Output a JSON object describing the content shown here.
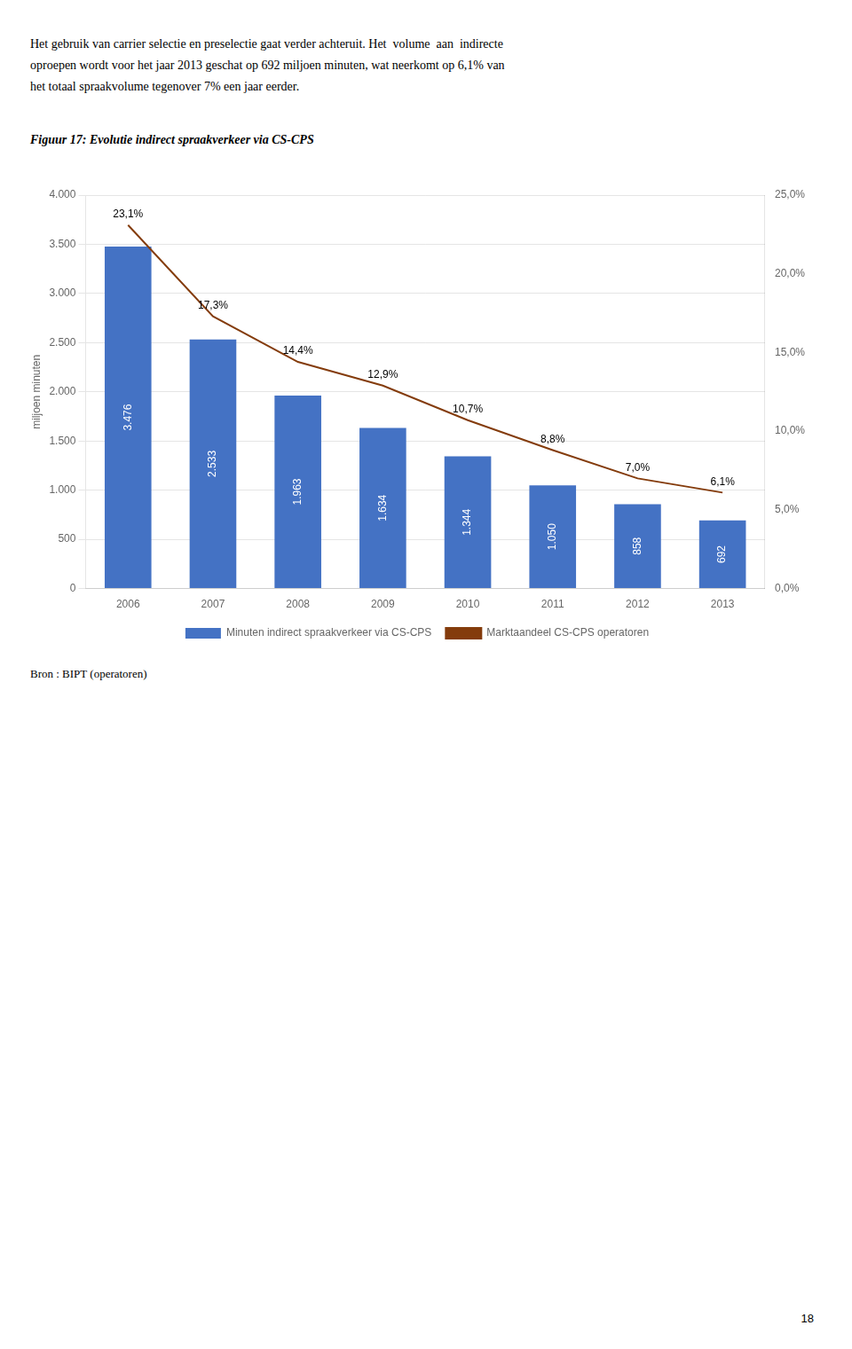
{
  "chart_data": {
    "type": "bar",
    "header_lines": [
      "Het gebruik van carrier selectie en preselectie gaat verder achteruit. Het  volume  aan  indirecte",
      "oproepen wordt voor het jaar 2013 geschat op 692 miljoen minuten, wat neerkomt op 6,1% van",
      "het totaal spraakvolume tegenover 7% een jaar eerder."
    ],
    "title": "Figuur 17: Evolutie indirect spraakverkeer via CS-CPS",
    "source": "Bron : BIPT (operatoren)",
    "page_number": "18",
    "ylabel": "miljoen minuten",
    "categories": [
      "2006",
      "2007",
      "2008",
      "2009",
      "2010",
      "2011",
      "2012",
      "2013"
    ],
    "series": [
      {
        "name": "Minuten indirect spraakverkeer via CS-CPS",
        "type": "bar",
        "color": "#4472C4",
        "values": [
          3476,
          2533,
          1963,
          1634,
          1344,
          1050,
          858,
          692
        ],
        "value_labels": [
          "3.476",
          "2.533",
          "1.963",
          "1.634",
          "1.344",
          "1.050",
          "858",
          "692"
        ]
      },
      {
        "name": "Marktaandeel CS-CPS operatoren",
        "type": "line",
        "color": "#843C0C",
        "axis": "y2",
        "values": [
          23.1,
          17.3,
          14.4,
          12.9,
          10.7,
          8.8,
          7.0,
          6.1
        ],
        "value_labels": [
          "23,1%",
          "17,3%",
          "14,4%",
          "12,9%",
          "10,7%",
          "8,8%",
          "7,0%",
          "6,1%"
        ]
      }
    ],
    "ylim": [
      0,
      4000
    ],
    "yticks": [
      0,
      500,
      {
        "value": 1000,
        "label": "1.000"
      },
      {
        "value": 1500,
        "label": "1.500"
      },
      {
        "value": 2000,
        "label": "2.000"
      },
      {
        "value": 2500,
        "label": "2.500"
      },
      {
        "value": 3000,
        "label": "3.000"
      },
      {
        "value": 3500,
        "label": "3.500"
      },
      {
        "value": 4000,
        "label": "4.000"
      }
    ],
    "y2lim": [
      0.0,
      25.0
    ],
    "y2ticks": [
      {
        "value": 0.0,
        "label": "0,0%"
      },
      {
        "value": 5.0,
        "label": "5,0%"
      },
      {
        "value": 10.0,
        "label": "10,0%"
      },
      {
        "value": 15.0,
        "label": "15,0%"
      },
      {
        "value": 20.0,
        "label": "20,0%"
      },
      {
        "value": 25.0,
        "label": "25,0%"
      }
    ],
    "grid": true,
    "legend": "bottom",
    "data_labels": true
  }
}
